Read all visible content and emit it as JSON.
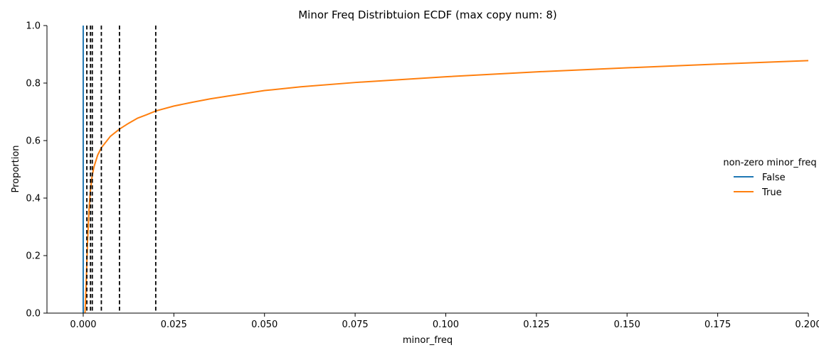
{
  "chart_data": {
    "type": "line",
    "title": "Minor Freq Distribtuion ECDF (max copy num: 8)",
    "xlabel": "minor_freq",
    "ylabel": "Proportion",
    "xlim": [
      -0.01,
      0.2
    ],
    "ylim": [
      0,
      1
    ],
    "x_ticks": [
      0.0,
      0.025,
      0.05,
      0.075,
      0.1,
      0.125,
      0.15,
      0.175,
      0.2
    ],
    "x_tick_labels": [
      "0.000",
      "0.025",
      "0.050",
      "0.075",
      "0.100",
      "0.125",
      "0.150",
      "0.175",
      "0.200"
    ],
    "y_ticks": [
      0.0,
      0.2,
      0.4,
      0.6,
      0.8,
      1.0
    ],
    "y_tick_labels": [
      "0.0",
      "0.2",
      "0.4",
      "0.6",
      "0.8",
      "1.0"
    ],
    "grid": false,
    "legend": {
      "title": "non-zero minor_freq",
      "placement": "right"
    },
    "series": [
      {
        "name": "False",
        "color": "#1f77b4",
        "points": [
          [
            0.0,
            0.0
          ],
          [
            0.0,
            1.0
          ]
        ]
      },
      {
        "name": "True",
        "color": "#ff7f0e",
        "points": [
          [
            0.0005,
            0.0
          ],
          [
            0.0008,
            0.1
          ],
          [
            0.0012,
            0.25
          ],
          [
            0.0016,
            0.36
          ],
          [
            0.002,
            0.43
          ],
          [
            0.0025,
            0.48
          ],
          [
            0.003,
            0.51
          ],
          [
            0.004,
            0.55
          ],
          [
            0.005,
            0.575
          ],
          [
            0.0075,
            0.615
          ],
          [
            0.01,
            0.64
          ],
          [
            0.0125,
            0.66
          ],
          [
            0.015,
            0.678
          ],
          [
            0.0175,
            0.69
          ],
          [
            0.02,
            0.703
          ],
          [
            0.025,
            0.72
          ],
          [
            0.03,
            0.733
          ],
          [
            0.035,
            0.745
          ],
          [
            0.04,
            0.755
          ],
          [
            0.05,
            0.774
          ],
          [
            0.06,
            0.787
          ],
          [
            0.075,
            0.802
          ],
          [
            0.1,
            0.822
          ],
          [
            0.125,
            0.839
          ],
          [
            0.15,
            0.853
          ],
          [
            0.175,
            0.866
          ],
          [
            0.2,
            0.878
          ]
        ]
      }
    ],
    "vlines": {
      "style": "dashed",
      "color": "#000000",
      "x": [
        0.001,
        0.002,
        0.0025,
        0.005,
        0.01,
        0.02
      ]
    }
  }
}
